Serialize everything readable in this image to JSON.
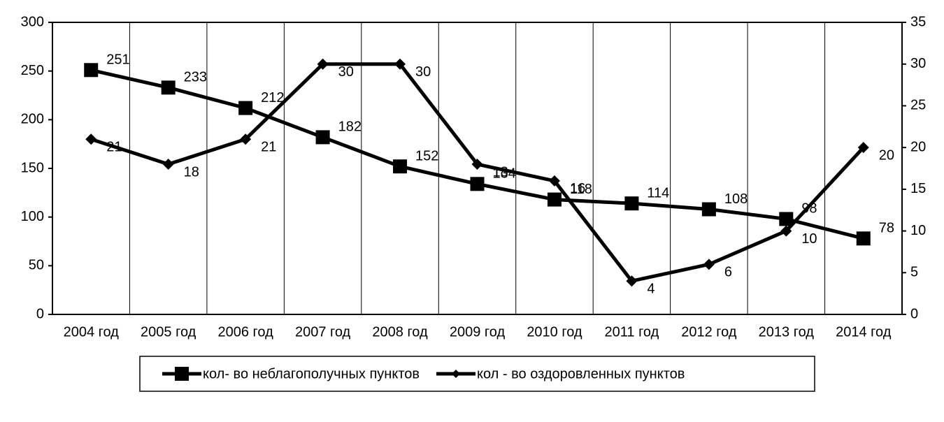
{
  "chart_data": {
    "type": "line",
    "categories": [
      "2004 год",
      "2005 год",
      "2006 год",
      "2007 год",
      "2008 год",
      "2009 год",
      "2010 год",
      "2011 год",
      "2012 год",
      "2013 год",
      "2014 год"
    ],
    "series": [
      {
        "name": "кол- во неблагополучных пунктов",
        "color": "#000000",
        "marker": "square",
        "axis": "y",
        "values": [
          251,
          233,
          212,
          182,
          152,
          134,
          118,
          114,
          108,
          98,
          78
        ]
      },
      {
        "name": "кол - во оздоровленных пунктов",
        "color": "#000000",
        "marker": "diamond",
        "axis": "y2",
        "values": [
          21,
          18,
          21,
          30,
          30,
          18,
          16,
          4,
          6,
          10,
          20
        ]
      }
    ],
    "ylim": [
      0,
      300
    ],
    "yticks": [
      0,
      50,
      100,
      150,
      200,
      250,
      300
    ],
    "y2lim": [
      0,
      35
    ],
    "y2ticks": [
      0,
      5,
      10,
      15,
      20,
      25,
      30,
      35
    ],
    "grid": true,
    "legend": "bottom"
  }
}
